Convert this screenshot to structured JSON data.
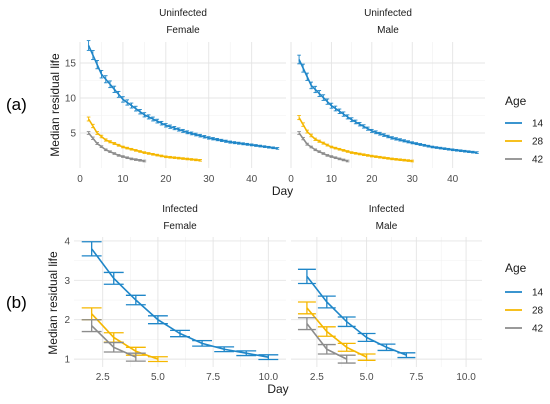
{
  "figure": {
    "panel_labels": [
      "(a)",
      "(b)"
    ]
  },
  "chart_data": [
    {
      "type": "line",
      "panel": "(a)",
      "ylabel": "Median residual life",
      "xlabel": "Day",
      "xlim": [
        0,
        48
      ],
      "ylim": [
        0,
        18
      ],
      "xticks": [
        0,
        10,
        20,
        30,
        40
      ],
      "yticks": [
        5,
        10,
        15
      ],
      "grid": true,
      "legend": {
        "title": "Age",
        "position": "right",
        "entries": [
          "14",
          "28",
          "42"
        ]
      },
      "colors": {
        "14": "#1f86c8",
        "28": "#f5b700",
        "42": "#8c8c8c"
      },
      "facets": [
        {
          "strip1": "Uninfected",
          "strip2": "Female",
          "series": [
            {
              "name": "14",
              "end": 46,
              "points": [
                [
                  2,
                  17.5
                ],
                [
                  5,
                  13.4
                ],
                [
                  10,
                  9.8
                ],
                [
                  15,
                  7.6
                ],
                [
                  20,
                  6.1
                ],
                [
                  25,
                  5.1
                ],
                [
                  30,
                  4.3
                ],
                [
                  35,
                  3.7
                ],
                [
                  40,
                  3.3
                ],
                [
                  46,
                  2.8
                ]
              ]
            },
            {
              "name": "28",
              "end": 28,
              "points": [
                [
                  2,
                  7.0
                ],
                [
                  4,
                  5.0
                ],
                [
                  6,
                  4.0
                ],
                [
                  10,
                  3.0
                ],
                [
                  15,
                  2.2
                ],
                [
                  20,
                  1.6
                ],
                [
                  28,
                  1.1
                ]
              ]
            },
            {
              "name": "42",
              "end": 15,
              "points": [
                [
                  2,
                  5.0
                ],
                [
                  4,
                  3.5
                ],
                [
                  6,
                  2.6
                ],
                [
                  9,
                  1.8
                ],
                [
                  12,
                  1.3
                ],
                [
                  15,
                  1.0
                ]
              ]
            }
          ]
        },
        {
          "strip1": "Uninfected",
          "strip2": "Male",
          "series": [
            {
              "name": "14",
              "end": 46,
              "points": [
                [
                  2,
                  15.5
                ],
                [
                  5,
                  11.8
                ],
                [
                  10,
                  8.9
                ],
                [
                  15,
                  6.9
                ],
                [
                  20,
                  5.3
                ],
                [
                  25,
                  4.3
                ],
                [
                  30,
                  3.6
                ],
                [
                  35,
                  3.0
                ],
                [
                  40,
                  2.6
                ],
                [
                  46,
                  2.2
                ]
              ]
            },
            {
              "name": "28",
              "end": 30,
              "points": [
                [
                  2,
                  7.2
                ],
                [
                  4,
                  5.2
                ],
                [
                  6,
                  4.1
                ],
                [
                  10,
                  3.0
                ],
                [
                  15,
                  2.2
                ],
                [
                  20,
                  1.7
                ],
                [
                  25,
                  1.3
                ],
                [
                  30,
                  1.0
                ]
              ]
            },
            {
              "name": "42",
              "end": 14,
              "points": [
                [
                  2,
                  5.0
                ],
                [
                  4,
                  3.4
                ],
                [
                  6,
                  2.6
                ],
                [
                  9,
                  1.8
                ],
                [
                  12,
                  1.3
                ],
                [
                  14,
                  1.0
                ]
              ]
            }
          ]
        }
      ]
    },
    {
      "type": "line",
      "panel": "(b)",
      "ylabel": "Median residual life",
      "xlabel": "Day",
      "xlim": [
        1.2,
        10.8
      ],
      "ylim": [
        0.8,
        4.1
      ],
      "xticks": [
        2.5,
        5.0,
        7.5,
        10.0
      ],
      "xticklabels": [
        "2.5",
        "5.0",
        "7.5",
        "10.0"
      ],
      "yticks": [
        1,
        2,
        3,
        4
      ],
      "grid": true,
      "legend": {
        "title": "Age",
        "position": "right",
        "entries": [
          "14",
          "28",
          "42"
        ]
      },
      "colors": {
        "14": "#1f86c8",
        "28": "#f5b700",
        "42": "#8c8c8c"
      },
      "facets": [
        {
          "strip1": "Infected",
          "strip2": "Female",
          "series": [
            {
              "name": "14",
              "x": [
                2,
                3,
                4,
                5,
                6,
                7,
                8,
                9,
                10
              ],
              "y": [
                3.8,
                3.05,
                2.5,
                2.0,
                1.65,
                1.4,
                1.25,
                1.15,
                1.05
              ],
              "err": [
                0.18,
                0.15,
                0.12,
                0.1,
                0.08,
                0.07,
                0.06,
                0.06,
                0.06
              ]
            },
            {
              "name": "28",
              "x": [
                2,
                3,
                4,
                5
              ],
              "y": [
                2.15,
                1.55,
                1.2,
                1.0
              ],
              "err": [
                0.15,
                0.12,
                0.1,
                0.06
              ]
            },
            {
              "name": "42",
              "x": [
                2,
                3,
                4
              ],
              "y": [
                1.85,
                1.3,
                1.05
              ],
              "err": [
                0.15,
                0.12,
                0.1
              ]
            }
          ]
        },
        {
          "strip1": "Infected",
          "strip2": "Male",
          "series": [
            {
              "name": "14",
              "x": [
                2,
                3,
                4,
                5,
                6,
                7
              ],
              "y": [
                3.1,
                2.45,
                1.95,
                1.55,
                1.3,
                1.1
              ],
              "err": [
                0.18,
                0.15,
                0.12,
                0.1,
                0.08,
                0.06
              ]
            },
            {
              "name": "28",
              "x": [
                2,
                3,
                4,
                5
              ],
              "y": [
                2.3,
                1.7,
                1.3,
                1.05
              ],
              "err": [
                0.15,
                0.12,
                0.1,
                0.08
              ]
            },
            {
              "name": "42",
              "x": [
                2,
                3,
                4
              ],
              "y": [
                1.9,
                1.25,
                1.0
              ],
              "err": [
                0.15,
                0.12,
                0.1
              ]
            }
          ]
        }
      ]
    }
  ]
}
